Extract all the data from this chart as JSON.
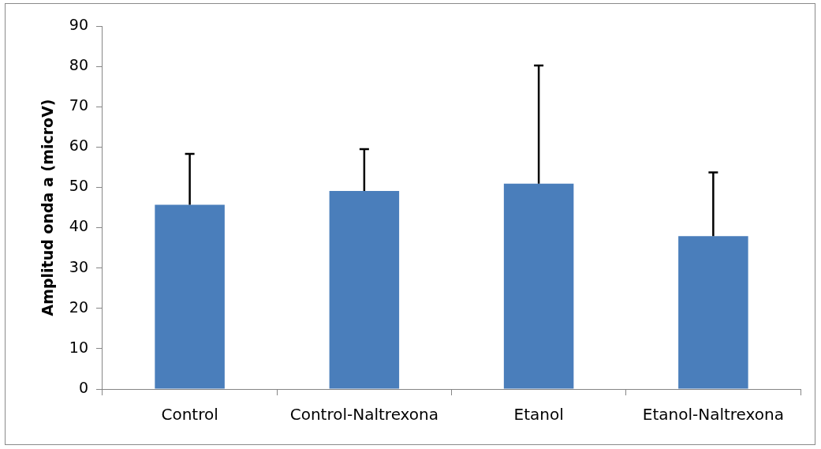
{
  "chart_data": {
    "type": "bar",
    "ylabel": "Amplitud onda a (microV)",
    "categories": [
      "Control",
      "Control-Naltrexona",
      "Etanol",
      "Etanol-Naltrexona"
    ],
    "values": [
      45.7,
      49.1,
      50.9,
      37.9
    ],
    "errors": [
      [
        45.7,
        58.3
      ],
      [
        49.1,
        59.5
      ],
      [
        50.9,
        80.2
      ],
      [
        37.9,
        53.7
      ]
    ],
    "color": "#4a7ebb",
    "ylim": [
      0,
      90
    ],
    "yticks": [
      0,
      10,
      20,
      30,
      40,
      50,
      60,
      70,
      80,
      90
    ],
    "grid": false,
    "legend": false
  }
}
